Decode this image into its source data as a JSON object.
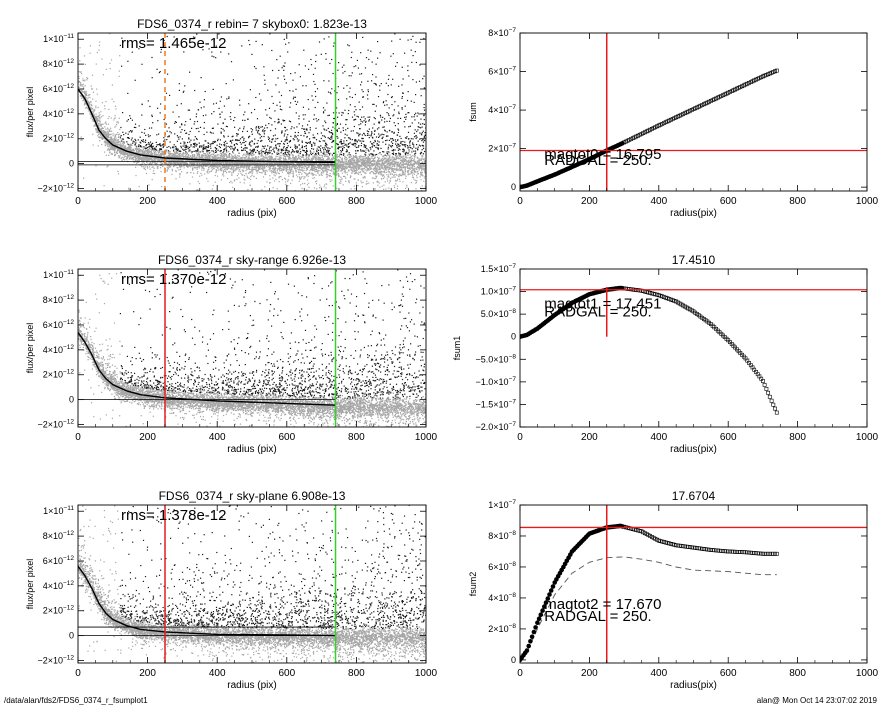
{
  "footer": {
    "path": "/data/alan/fds2/FDS6_0374_r_fsumplot1",
    "stamp": "alan@  Mon Oct 14 23:07:02 2019"
  },
  "colors": {
    "scatter_gray": "#a6a6a6",
    "scatter_black": "#1a1a1a",
    "marker_red": "#e81b1b",
    "marker_orange": "#f07b1d",
    "marker_green": "#33d12a"
  },
  "chart_data": [
    {
      "id": "p1",
      "type": "scatter",
      "title": "FDS6_0374_r rebin= 7    skybox0:  1.823e-13",
      "annotation": "rms= 1.465e-12",
      "xlabel": "radius (pix)",
      "ylabel": "flux/per pixel",
      "xlim": [
        0,
        1000
      ],
      "ylim": [
        -2.2e-12,
        1.05e-11
      ],
      "xticks": [
        0,
        200,
        400,
        600,
        800,
        1000
      ],
      "xtick_labels": [
        "0",
        "200",
        "400",
        "600",
        "800",
        "1000"
      ],
      "yticks": [
        -2e-12,
        0,
        2e-12,
        4e-12,
        6e-12,
        8e-12,
        1e-11
      ],
      "ytick_mant": [
        "−2×10",
        "0",
        "2×10",
        "4×10",
        "6×10",
        "8×10",
        "1×10"
      ],
      "ytick_exp": [
        "−12",
        "",
        "−12",
        "−12",
        "−12",
        "−12",
        "−11"
      ],
      "profile": [
        [
          0,
          6e-12
        ],
        [
          20,
          5.2e-12
        ],
        [
          40,
          4e-12
        ],
        [
          60,
          2.7e-12
        ],
        [
          80,
          2e-12
        ],
        [
          100,
          1.5e-12
        ],
        [
          140,
          1e-12
        ],
        [
          180,
          7e-13
        ],
        [
          250,
          4.5e-13
        ],
        [
          400,
          2.5e-13
        ],
        [
          600,
          1.5e-13
        ],
        [
          740,
          1e-13
        ]
      ],
      "sky_lines": [
        1.823e-13,
        -1e-13
      ],
      "vlines": [
        {
          "x": 250,
          "color": "#f07b1d",
          "dashed": true
        },
        {
          "x": 740,
          "color": "#33d12a",
          "dashed": false
        }
      ],
      "hlines": []
    },
    {
      "id": "p2",
      "type": "scatter",
      "title": "FDS6_0374_r sky-range  6.926e-13",
      "annotation": "rms= 1.370e-12",
      "xlabel": "radius (pix)",
      "ylabel": "flux/per pixel",
      "xlim": [
        0,
        1000
      ],
      "ylim": [
        -2.2e-12,
        1.05e-11
      ],
      "xticks": [
        0,
        200,
        400,
        600,
        800,
        1000
      ],
      "xtick_labels": [
        "0",
        "200",
        "400",
        "600",
        "800",
        "1000"
      ],
      "yticks": [
        -2e-12,
        0,
        2e-12,
        4e-12,
        6e-12,
        8e-12,
        1e-11
      ],
      "ytick_mant": [
        "−2×10",
        "0",
        "2×10",
        "4×10",
        "6×10",
        "8×10",
        "1×10"
      ],
      "ytick_exp": [
        "−12",
        "",
        "−12",
        "−12",
        "−12",
        "−12",
        "−11"
      ],
      "profile": [
        [
          0,
          5.4e-12
        ],
        [
          20,
          4.6e-12
        ],
        [
          40,
          3.6e-12
        ],
        [
          60,
          2.4e-12
        ],
        [
          80,
          1.7e-12
        ],
        [
          100,
          1.2e-12
        ],
        [
          140,
          7e-13
        ],
        [
          180,
          4e-13
        ],
        [
          250,
          1.5e-13
        ],
        [
          400,
          -1e-13
        ],
        [
          600,
          -3e-13
        ],
        [
          740,
          -4.5e-13
        ]
      ],
      "sky_lines": [
        0
      ],
      "vlines": [
        {
          "x": 250,
          "color": "#e81b1b",
          "dashed": false
        },
        {
          "x": 740,
          "color": "#33d12a",
          "dashed": false
        }
      ],
      "hlines": []
    },
    {
      "id": "p3",
      "type": "scatter",
      "title": "FDS6_0374_r sky-plane  6.908e-13",
      "annotation": "rms= 1.378e-12",
      "xlabel": "radius (pix)",
      "ylabel": "flux/per pixel",
      "xlim": [
        0,
        1000
      ],
      "ylim": [
        -2.2e-12,
        1.05e-11
      ],
      "xticks": [
        0,
        200,
        400,
        600,
        800,
        1000
      ],
      "xtick_labels": [
        "0",
        "200",
        "400",
        "600",
        "800",
        "1000"
      ],
      "yticks": [
        -2e-12,
        0,
        2e-12,
        4e-12,
        6e-12,
        8e-12,
        1e-11
      ],
      "ytick_mant": [
        "−2×10",
        "0",
        "2×10",
        "4×10",
        "6×10",
        "8×10",
        "1×10"
      ],
      "ytick_exp": [
        "−12",
        "",
        "−12",
        "−12",
        "−12",
        "−12",
        "−11"
      ],
      "profile": [
        [
          0,
          5.6e-12
        ],
        [
          20,
          4.8e-12
        ],
        [
          40,
          3.8e-12
        ],
        [
          60,
          2.6e-12
        ],
        [
          80,
          1.8e-12
        ],
        [
          100,
          1.3e-12
        ],
        [
          140,
          8e-13
        ],
        [
          180,
          5e-13
        ],
        [
          250,
          3e-13
        ],
        [
          400,
          1e-13
        ],
        [
          600,
          5e-14
        ],
        [
          740,
          0.0
        ]
      ],
      "sky_lines": [
        6.9e-13,
        0
      ],
      "vlines": [
        {
          "x": 250,
          "color": "#e81b1b",
          "dashed": false
        },
        {
          "x": 740,
          "color": "#33d12a",
          "dashed": false
        }
      ],
      "hlines": []
    },
    {
      "id": "p4",
      "type": "line",
      "title": "",
      "xlabel": "radius(pix)",
      "ylabel": "fsum",
      "xlim": [
        0,
        1000
      ],
      "ylim": [
        -2e-08,
        8e-07
      ],
      "xticks": [
        0,
        200,
        400,
        600,
        800,
        1000
      ],
      "xtick_labels": [
        "0",
        "200",
        "400",
        "600",
        "800",
        "1000"
      ],
      "yticks": [
        0,
        2e-07,
        4e-07,
        6e-07,
        8e-07
      ],
      "ytick_mant": [
        "0",
        "2×10",
        "4×10",
        "6×10",
        "8×10"
      ],
      "ytick_exp": [
        "",
        "−7",
        "−7",
        "−7",
        "−7"
      ],
      "annotations": [
        {
          "text": "magtot0 =  16.795",
          "x": 70,
          "y": 1.45e-07
        },
        {
          "text": "RADGAL =    250.",
          "x": 70,
          "y": 1.15e-07
        }
      ],
      "curve": [
        [
          0,
          0
        ],
        [
          20,
          8e-09
        ],
        [
          50,
          3e-08
        ],
        [
          100,
          6.5e-08
        ],
        [
          150,
          1.05e-07
        ],
        [
          200,
          1.45e-07
        ],
        [
          250,
          1.9e-07
        ],
        [
          300,
          2.32e-07
        ],
        [
          400,
          3.2e-07
        ],
        [
          500,
          4.05e-07
        ],
        [
          600,
          4.9e-07
        ],
        [
          700,
          5.75e-07
        ],
        [
          740,
          6.05e-07
        ]
      ],
      "dashed_curve": [],
      "vlines": [
        {
          "x": 250,
          "color": "#e81b1b",
          "dashed": false
        }
      ],
      "hlines": [
        {
          "y": 1.9e-07,
          "color": "#e81b1b"
        }
      ]
    },
    {
      "id": "p5",
      "type": "line",
      "title": "17.4510",
      "xlabel": "radius(pix)",
      "ylabel": "fsum1",
      "xlim": [
        0,
        1000
      ],
      "ylim": [
        -2e-07,
        1.5e-07
      ],
      "xticks": [
        0,
        200,
        400,
        600,
        800,
        1000
      ],
      "xtick_labels": [
        "0",
        "200",
        "400",
        "600",
        "800",
        "1000"
      ],
      "yticks": [
        -2e-07,
        -1.5e-07,
        -1e-07,
        -5e-08,
        0,
        5e-08,
        1e-07,
        1.5e-07
      ],
      "ytick_mant": [
        "−2.0×10",
        "−1.5×10",
        "−1.0×10",
        "−5.0×10",
        "0",
        "5.0×10",
        "1.0×10",
        "1.5×10"
      ],
      "ytick_exp": [
        "−7",
        "−7",
        "−7",
        "−8",
        "",
        "−8",
        "−7",
        "−7"
      ],
      "annotations": [
        {
          "text": "magtot1 =  17.451",
          "x": 70,
          "y": 6.2e-08
        },
        {
          "text": "RADGAL =    250.",
          "x": 70,
          "y": 4.5e-08
        }
      ],
      "curve": [
        [
          0,
          0
        ],
        [
          20,
          4e-09
        ],
        [
          50,
          1.8e-08
        ],
        [
          100,
          4.8e-08
        ],
        [
          150,
          7.5e-08
        ],
        [
          200,
          9.4e-08
        ],
        [
          250,
          1.04e-07
        ],
        [
          290,
          1.08e-07
        ],
        [
          350,
          1.02e-07
        ],
        [
          400,
          9.2e-08
        ],
        [
          450,
          7.8e-08
        ],
        [
          500,
          5.6e-08
        ],
        [
          550,
          2.8e-08
        ],
        [
          600,
          -8e-09
        ],
        [
          650,
          -4.8e-08
        ],
        [
          700,
          -9.8e-08
        ],
        [
          740,
          -1.68e-07
        ]
      ],
      "dashed_curve": [],
      "vlines": [
        {
          "x": 250,
          "color": "#e81b1b",
          "dashed": false,
          "ytop": 1.1e-07,
          "ybottom": 0
        }
      ],
      "hlines": [
        {
          "y": 1.04e-07,
          "color": "#e81b1b"
        }
      ]
    },
    {
      "id": "p6",
      "type": "line",
      "title": "17.6704",
      "xlabel": "radius(pix)",
      "ylabel": "fsum2",
      "xlim": [
        0,
        1000
      ],
      "ylim": [
        -2e-09,
        1e-07
      ],
      "xticks": [
        0,
        200,
        400,
        600,
        800,
        1000
      ],
      "xtick_labels": [
        "0",
        "200",
        "400",
        "600",
        "800",
        "1000"
      ],
      "yticks": [
        0,
        2e-08,
        4e-08,
        6e-08,
        8e-08,
        1e-07
      ],
      "ytick_mant": [
        "0",
        "2×10",
        "4×10",
        "6×10",
        "8×10",
        "1×10"
      ],
      "ytick_exp": [
        "",
        "−8",
        "−8",
        "−8",
        "−8",
        "−7"
      ],
      "annotations": [
        {
          "text": "magtot2 =  17.670",
          "x": 70,
          "y": 3.3e-08
        },
        {
          "text": "RADGAL =    250.",
          "x": 70,
          "y": 2.5e-08
        }
      ],
      "curve": [
        [
          0,
          0
        ],
        [
          20,
          6e-09
        ],
        [
          50,
          2.4e-08
        ],
        [
          100,
          5e-08
        ],
        [
          150,
          7e-08
        ],
        [
          200,
          8.15e-08
        ],
        [
          250,
          8.55e-08
        ],
        [
          290,
          8.65e-08
        ],
        [
          350,
          8.3e-08
        ],
        [
          400,
          7.7e-08
        ],
        [
          450,
          7.4e-08
        ],
        [
          500,
          7.25e-08
        ],
        [
          550,
          7.1e-08
        ],
        [
          600,
          7e-08
        ],
        [
          650,
          6.95e-08
        ],
        [
          700,
          6.85e-08
        ],
        [
          740,
          6.85e-08
        ]
      ],
      "dashed_curve": [
        [
          0,
          0
        ],
        [
          20,
          5e-09
        ],
        [
          50,
          2e-08
        ],
        [
          100,
          4.2e-08
        ],
        [
          150,
          5.6e-08
        ],
        [
          200,
          6.3e-08
        ],
        [
          250,
          6.6e-08
        ],
        [
          300,
          6.65e-08
        ],
        [
          350,
          6.5e-08
        ],
        [
          400,
          6.3e-08
        ],
        [
          450,
          6e-08
        ],
        [
          500,
          5.8e-08
        ],
        [
          550,
          5.75e-08
        ],
        [
          600,
          5.7e-08
        ],
        [
          650,
          5.6e-08
        ],
        [
          700,
          5.5e-08
        ],
        [
          740,
          5.5e-08
        ]
      ],
      "vlines": [
        {
          "x": 250,
          "color": "#e81b1b",
          "dashed": false
        }
      ],
      "hlines": [
        {
          "y": 8.55e-08,
          "color": "#e81b1b"
        }
      ]
    }
  ]
}
